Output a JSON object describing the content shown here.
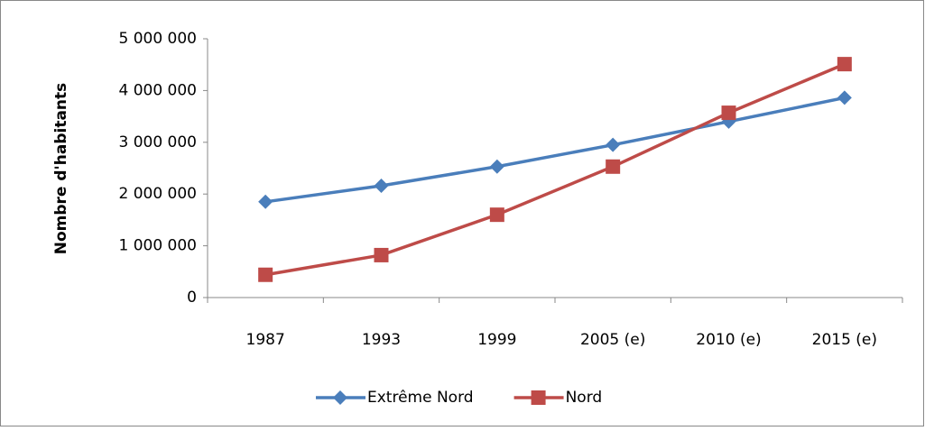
{
  "chart_data": {
    "type": "line",
    "y_label": "Nombre d'habitants",
    "categories": [
      "1987",
      "1993",
      "1999",
      "2005 (e)",
      "2010 (e)",
      "2015 (e)"
    ],
    "series": [
      {
        "name": "Extrême Nord",
        "color": "#4a7ebb",
        "marker": "diamond",
        "values": [
          1850000,
          2160000,
          2530000,
          2950000,
          3400000,
          3860000
        ]
      },
      {
        "name": "Nord",
        "color": "#be4b48",
        "marker": "square",
        "values": [
          440000,
          820000,
          1600000,
          2530000,
          3570000,
          4510000
        ]
      }
    ],
    "ylim": [
      0,
      5000000
    ],
    "yticks": [
      0,
      {
        "value": 1000000,
        "label": "1 000 000"
      },
      {
        "value": 2000000,
        "label": "2 000 000"
      },
      {
        "value": 3000000,
        "label": "3 000 000"
      },
      {
        "value": 4000000,
        "label": "4 000 000"
      },
      {
        "value": 5000000,
        "label": "5 000 000"
      }
    ],
    "legend": "bottom"
  }
}
